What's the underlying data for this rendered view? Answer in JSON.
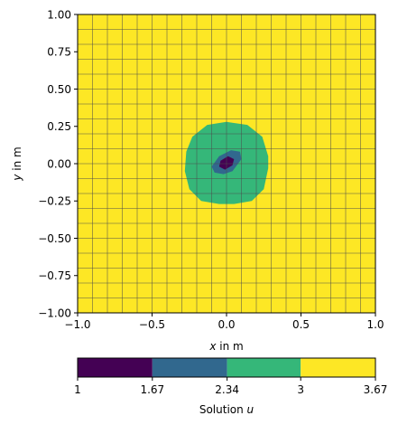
{
  "chart_data": [
    {
      "type": "heatmap",
      "title": "",
      "xlabel_var": "x",
      "xlabel_unit": " in m",
      "ylabel_var": "y",
      "ylabel_unit": " in m",
      "xlim": [
        -1.0,
        1.0
      ],
      "ylim": [
        -1.0,
        1.0
      ],
      "xticks": [
        -1.0,
        -0.5,
        0.0,
        0.5,
        1.0
      ],
      "yticks": [
        -1.0,
        -0.75,
        -0.5,
        -0.25,
        0.0,
        0.25,
        0.5,
        0.75,
        1.0
      ],
      "xtick_labels": [
        "−1.0",
        "−0.5",
        "0.0",
        "0.5",
        "1.0"
      ],
      "ytick_labels": [
        "−1.00",
        "−0.75",
        "−0.50",
        "−0.25",
        "0.00",
        "0.25",
        "0.50",
        "0.75",
        "1.00"
      ],
      "mesh": {
        "type": "quadrilateral",
        "cells_x": 20,
        "cells_y": 20,
        "grid_line_color": "#4d4d4d"
      },
      "contour_levels": [
        1.0,
        1.67,
        2.34,
        3.0,
        3.67
      ],
      "level_colors": [
        "#440154",
        "#31688e",
        "#35b779",
        "#fde725"
      ],
      "regions": [
        {
          "range": [
            3.0,
            3.67
          ],
          "description": "background field",
          "color": "#fde725"
        },
        {
          "range": [
            2.34,
            3.0
          ],
          "description": "disk around origin",
          "color": "#35b779",
          "radius": 0.28,
          "boundary": [
            [
              0.0,
              0.28
            ],
            [
              0.14,
              0.26
            ],
            [
              0.24,
              0.18
            ],
            [
              0.28,
              0.05
            ],
            [
              0.28,
              -0.03
            ],
            [
              0.25,
              -0.17
            ],
            [
              0.17,
              -0.25
            ],
            [
              0.05,
              -0.27
            ],
            [
              -0.05,
              -0.27
            ],
            [
              -0.17,
              -0.25
            ],
            [
              -0.25,
              -0.17
            ],
            [
              -0.28,
              -0.05
            ],
            [
              -0.27,
              0.08
            ],
            [
              -0.23,
              0.18
            ],
            [
              -0.13,
              0.26
            ]
          ]
        },
        {
          "range": [
            1.67,
            2.34
          ],
          "description": "inner ring",
          "color": "#31688e",
          "boundary": [
            [
              0.03,
              0.09
            ],
            [
              0.09,
              0.08
            ],
            [
              0.1,
              0.03
            ],
            [
              0.04,
              -0.05
            ],
            [
              -0.02,
              -0.07
            ],
            [
              -0.08,
              -0.06
            ],
            [
              -0.1,
              -0.02
            ],
            [
              -0.05,
              0.05
            ]
          ]
        },
        {
          "range": [
            1.0,
            1.67
          ],
          "description": "core at origin",
          "color": "#440154",
          "boundary": [
            [
              0.01,
              0.05
            ],
            [
              0.05,
              0.03
            ],
            [
              0.04,
              -0.01
            ],
            [
              -0.01,
              -0.04
            ],
            [
              -0.05,
              -0.02
            ],
            [
              -0.04,
              0.02
            ]
          ]
        }
      ]
    },
    {
      "type": "colorbar",
      "label_text": "Solution ",
      "label_var": "u",
      "ticks": [
        1,
        1.67,
        2.34,
        3,
        3.67
      ],
      "tick_labels": [
        "1",
        "1.67",
        "2.34",
        "3",
        "3.67"
      ],
      "segments": [
        {
          "from": 1,
          "to": 1.67,
          "color": "#440154"
        },
        {
          "from": 1.67,
          "to": 2.34,
          "color": "#31688e"
        },
        {
          "from": 2.34,
          "to": 3,
          "color": "#35b779"
        },
        {
          "from": 3,
          "to": 3.67,
          "color": "#fde725"
        }
      ]
    }
  ]
}
